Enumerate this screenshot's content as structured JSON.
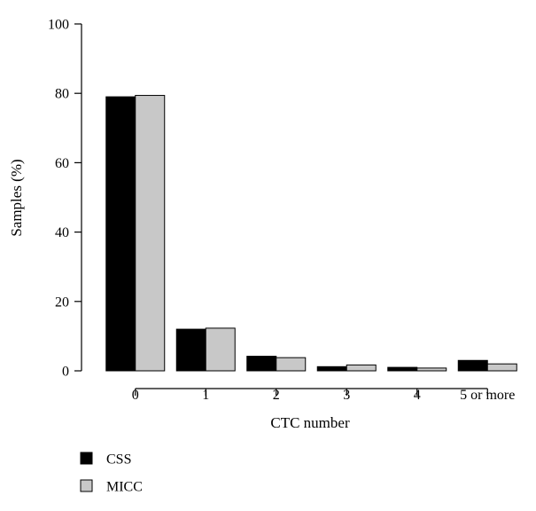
{
  "chart_data": {
    "type": "bar",
    "categories": [
      "0",
      "1",
      "2",
      "3",
      "4",
      "5 or more"
    ],
    "series": [
      {
        "name": "CSS",
        "values": [
          79.0,
          12.0,
          4.2,
          1.2,
          1.0,
          3.0
        ],
        "color": "#000000"
      },
      {
        "name": "MICC",
        "values": [
          79.4,
          12.3,
          3.8,
          1.7,
          0.8,
          2.0
        ],
        "color": "#c8c8c8"
      }
    ],
    "title": "",
    "xlabel": "CTC number",
    "ylabel": "Samples (%)",
    "ylim": [
      0,
      100
    ],
    "yticks": [
      0,
      20,
      40,
      60,
      80,
      100
    ],
    "grid": false,
    "legend_position": "bottom-left"
  }
}
